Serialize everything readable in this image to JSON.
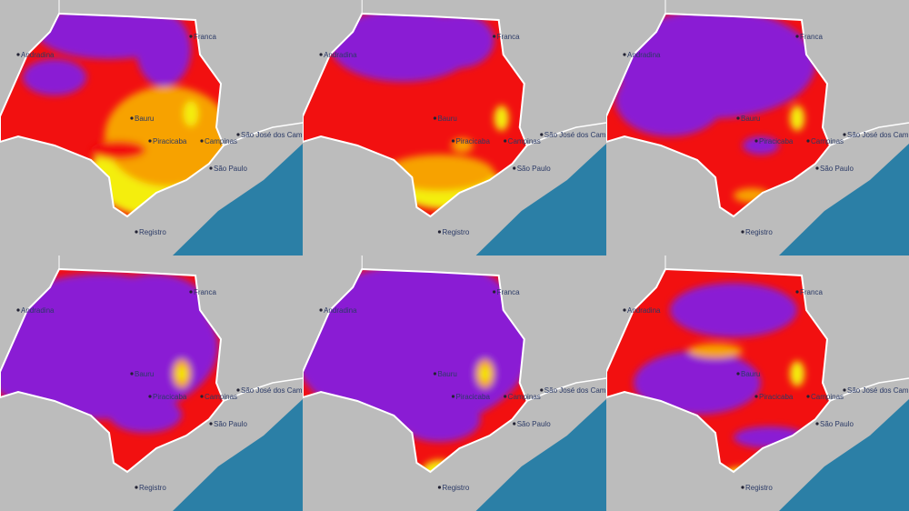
{
  "colors": {
    "land": "#bcbcbc",
    "ocean": "#2b7fa6",
    "border": "#ffffff",
    "very_high": "#8a1fd4",
    "high": "#f21010",
    "medium": "#f7a200",
    "low": "#f4ee10"
  },
  "cities": [
    "Andradina",
    "Franca",
    "Bauru",
    "Piracicaba",
    "Campinas",
    "São José dos Campos",
    "São Paulo",
    "Registro"
  ],
  "panels": [
    {
      "purple": 0.25,
      "red": 0.35,
      "orange": 0.25,
      "yellow": 0.15
    },
    {
      "purple": 0.3,
      "red": 0.45,
      "orange": 0.15,
      "yellow": 0.1
    },
    {
      "purple": 0.45,
      "red": 0.45,
      "orange": 0.05,
      "yellow": 0.05
    },
    {
      "purple": 0.6,
      "red": 0.35,
      "orange": 0.03,
      "yellow": 0.02
    },
    {
      "purple": 0.65,
      "red": 0.3,
      "orange": 0.03,
      "yellow": 0.02
    },
    {
      "purple": 0.35,
      "red": 0.6,
      "orange": 0.03,
      "yellow": 0.02
    }
  ]
}
